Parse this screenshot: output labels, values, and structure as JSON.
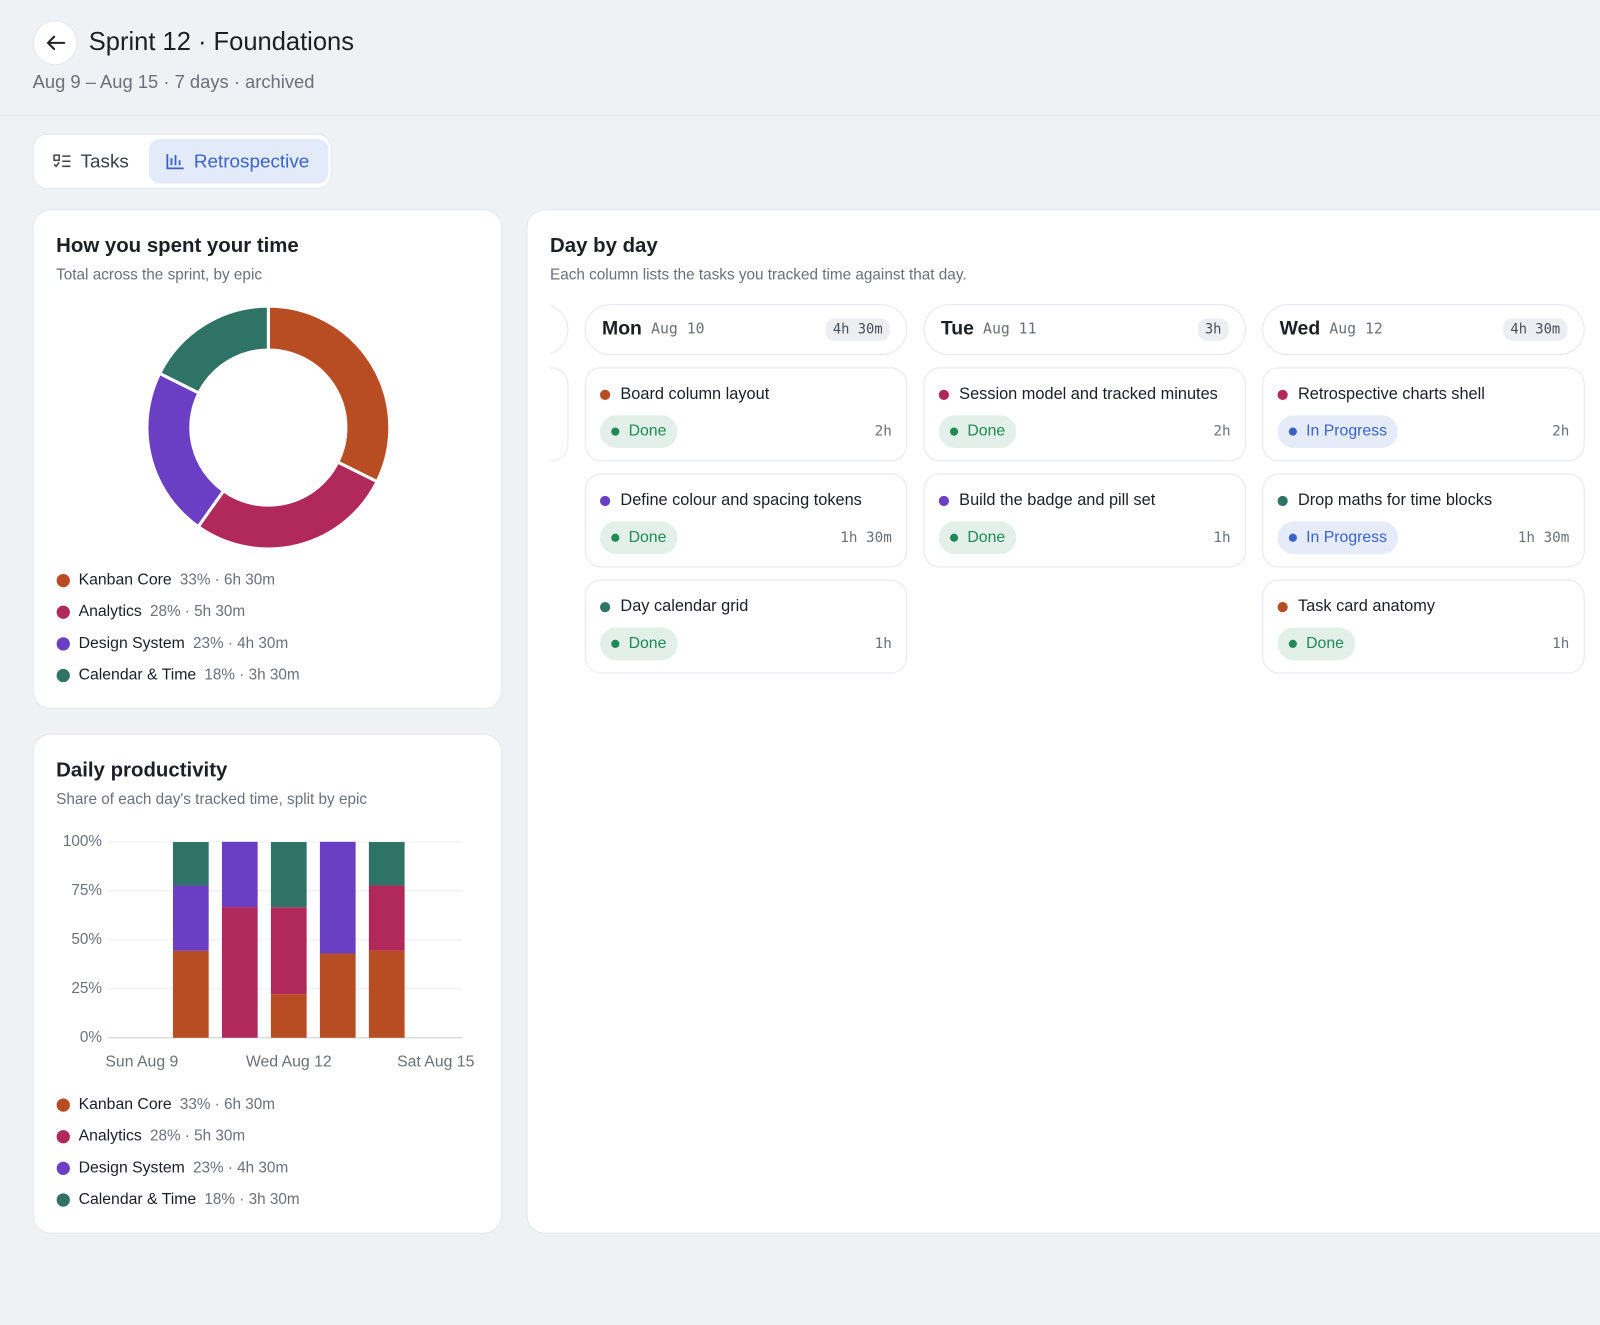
{
  "header": {
    "title": "Sprint 12 · Foundations",
    "subtitle": "Aug 9 – Aug 15 · 7 days · archived"
  },
  "tabs": [
    {
      "label": "Tasks",
      "active": false
    },
    {
      "label": "Retrospective",
      "active": true
    }
  ],
  "chart_data": [
    {
      "type": "pie",
      "donut": true,
      "title": "How you spent your time",
      "subtitle": "Total across the sprint, by epic",
      "categories": [
        "Kanban Core",
        "Analytics",
        "Design System",
        "Calendar & Time"
      ],
      "values": [
        33,
        28,
        23,
        18
      ],
      "value_labels": [
        "33% · 6h 30m",
        "28% · 5h 30m",
        "23% · 4h 30m",
        "18% · 3h 30m"
      ],
      "colors": [
        "#b84c22",
        "#b0295a",
        "#6a3fc4",
        "#2f7266"
      ]
    },
    {
      "type": "bar",
      "stacked": true,
      "title": "Daily productivity",
      "subtitle": "Share of each day's tracked time, split by epic",
      "categories": [
        "Sun Aug 9",
        null,
        null,
        "Wed Aug 12",
        null,
        null,
        "Sat Aug 15"
      ],
      "series": [
        {
          "name": "Kanban Core",
          "color": "#b84c22",
          "values": [
            null,
            44.4,
            0,
            22.2,
            43,
            44.4,
            null
          ]
        },
        {
          "name": "Analytics",
          "color": "#b0295a",
          "values": [
            null,
            0,
            66.7,
            44.4,
            0,
            33.3,
            null
          ]
        },
        {
          "name": "Design System",
          "color": "#6a3fc4",
          "values": [
            null,
            33.3,
            33.3,
            0,
            57,
            0,
            null
          ]
        },
        {
          "name": "Calendar & Time",
          "color": "#2f7266",
          "values": [
            null,
            22.2,
            0,
            33.3,
            0,
            22.2,
            null
          ]
        }
      ],
      "legend_details": [
        "33% · 6h 30m",
        "28% · 5h 30m",
        "23% · 4h 30m",
        "18% · 3h 30m"
      ],
      "ylim": [
        0,
        100
      ],
      "yticks": [
        {
          "value": 0,
          "label": "0%"
        },
        {
          "value": 25,
          "label": "25%"
        },
        {
          "value": 50,
          "label": "50%"
        },
        {
          "value": 75,
          "label": "75%"
        },
        {
          "value": 100,
          "label": "100%"
        }
      ],
      "grid": true
    }
  ],
  "day_by_day": {
    "title": "Day by day",
    "subtitle": "Each column lists the tasks you tracked time against that day.",
    "columns": [
      {
        "day": "Mon",
        "date": "Aug 10",
        "total": "4h 30m",
        "tasks": [
          {
            "title": "Board column layout",
            "status": "Done",
            "status_color": "#1f8a55",
            "time": "2h",
            "color": "#b84c22"
          },
          {
            "title": "Define colour and spacing tokens",
            "status": "Done",
            "status_color": "#1f8a55",
            "time": "1h 30m",
            "color": "#6a3fc4"
          },
          {
            "title": "Day calendar grid",
            "status": "Done",
            "status_color": "#1f8a55",
            "time": "1h",
            "color": "#2f7266"
          }
        ]
      },
      {
        "day": "Tue",
        "date": "Aug 11",
        "total": "3h",
        "tasks": [
          {
            "title": "Session model and tracked minutes",
            "status": "Done",
            "status_color": "#1f8a55",
            "time": "2h",
            "color": "#b0295a"
          },
          {
            "title": "Build the badge and pill set",
            "status": "Done",
            "status_color": "#1f8a55",
            "time": "1h",
            "color": "#6a3fc4"
          }
        ]
      },
      {
        "day": "Wed",
        "date": "Aug 12",
        "total": "4h 30m",
        "tasks": [
          {
            "title": "Retrospective charts shell",
            "status": "In Progress",
            "status_color": "#3a63c8",
            "time": "2h",
            "color": "#b0295a"
          },
          {
            "title": "Drop maths for time blocks",
            "status": "In Progress",
            "status_color": "#3a63c8",
            "time": "1h 30m",
            "color": "#2f7266"
          },
          {
            "title": "Task card anatomy",
            "status": "Done",
            "status_color": "#1f8a55",
            "time": "1h",
            "color": "#b84c22"
          }
        ]
      }
    ]
  }
}
